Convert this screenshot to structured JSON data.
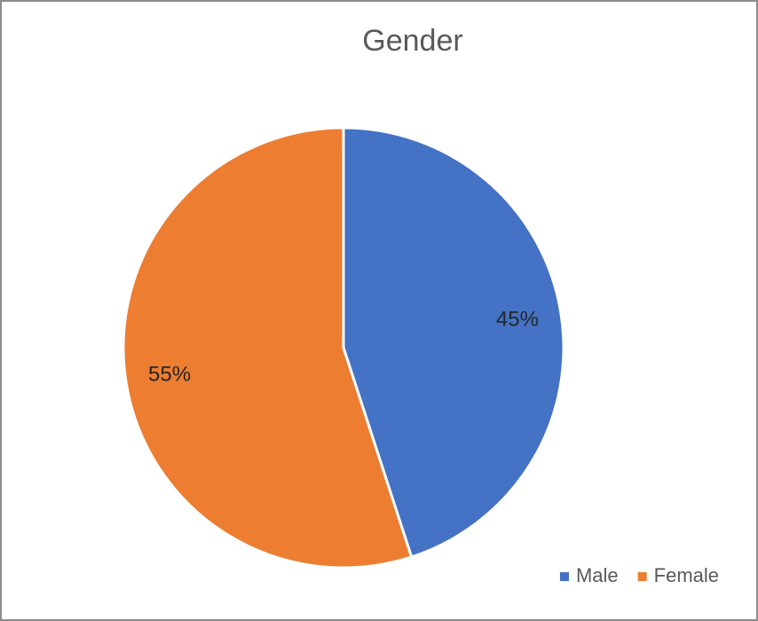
{
  "chart_data": {
    "type": "pie",
    "title": "Gender",
    "categories": [
      "Male",
      "Female"
    ],
    "values": [
      45,
      55
    ],
    "value_labels": [
      "45%",
      "55%"
    ],
    "colors": [
      "#4472c4",
      "#ed7d31"
    ],
    "legend": "bottom-right"
  }
}
